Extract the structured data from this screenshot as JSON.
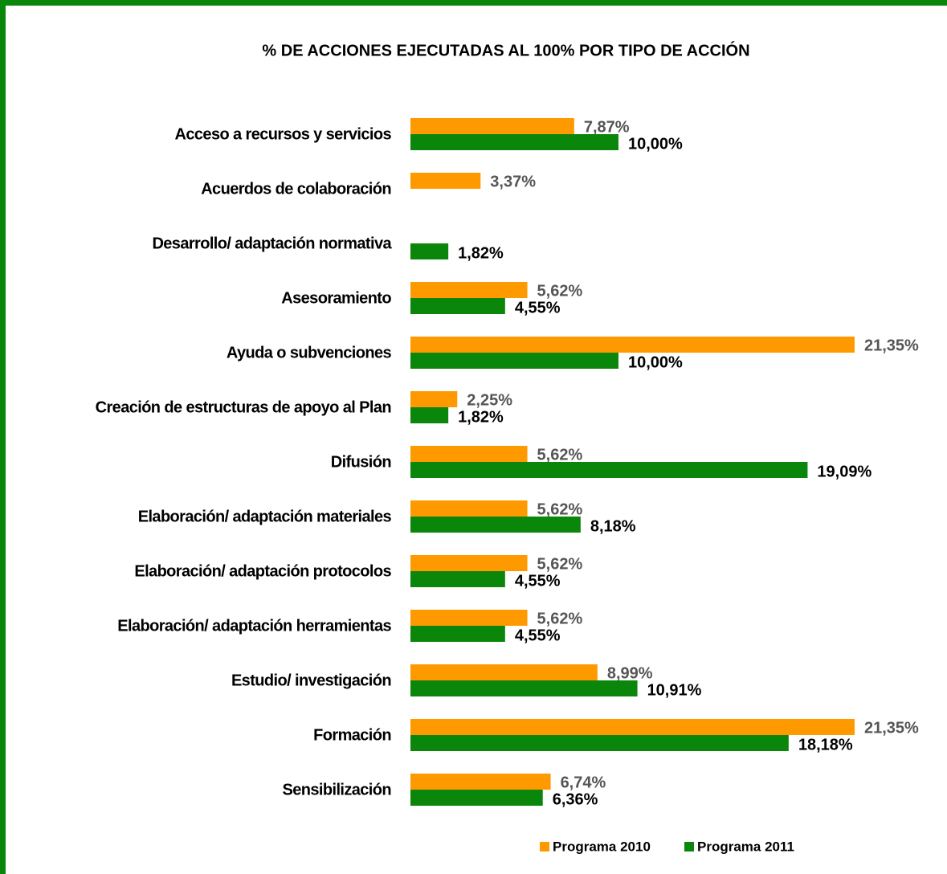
{
  "chart_data": {
    "type": "bar",
    "orientation": "horizontal",
    "title": "% DE ACCIONES EJECUTADAS AL 100% POR TIPO DE ACCIÓN",
    "categories": [
      "Acceso a recursos y servicios",
      "Acuerdos de colaboración",
      "Desarrollo/ adaptación normativa",
      "Asesoramiento",
      "Ayuda o subvenciones",
      "Creación de estructuras de apoyo al Plan",
      "Difusión",
      "Elaboración/ adaptación materiales",
      "Elaboración/ adaptación protocolos",
      "Elaboración/ adaptación herramientas",
      "Estudio/ investigación",
      "Formación",
      "Sensibilización"
    ],
    "series": [
      {
        "name": "Programa 2010",
        "color": "#ff9900",
        "values": [
          7.87,
          3.37,
          null,
          5.62,
          21.35,
          2.25,
          5.62,
          5.62,
          5.62,
          5.62,
          8.99,
          21.35,
          6.74
        ],
        "value_labels": [
          "7,87%",
          "3,37%",
          null,
          "5,62%",
          "21,35%",
          "2,25%",
          "5,62%",
          "5,62%",
          "5,62%",
          "5,62%",
          "8,99%",
          "21,35%",
          "6,74%"
        ]
      },
      {
        "name": "Programa 2011",
        "color": "#0a870a",
        "values": [
          10.0,
          null,
          1.82,
          4.55,
          10.0,
          1.82,
          19.09,
          8.18,
          4.55,
          4.55,
          10.91,
          18.18,
          6.36
        ],
        "value_labels": [
          "10,00%",
          null,
          "1,82%",
          "4,55%",
          "10,00%",
          "1,82%",
          "19,09%",
          "8,18%",
          "4,55%",
          "4,55%",
          "10,91%",
          "18,18%",
          "6,36%"
        ]
      }
    ],
    "xlim": [
      0,
      22
    ],
    "legend": "bottom"
  }
}
